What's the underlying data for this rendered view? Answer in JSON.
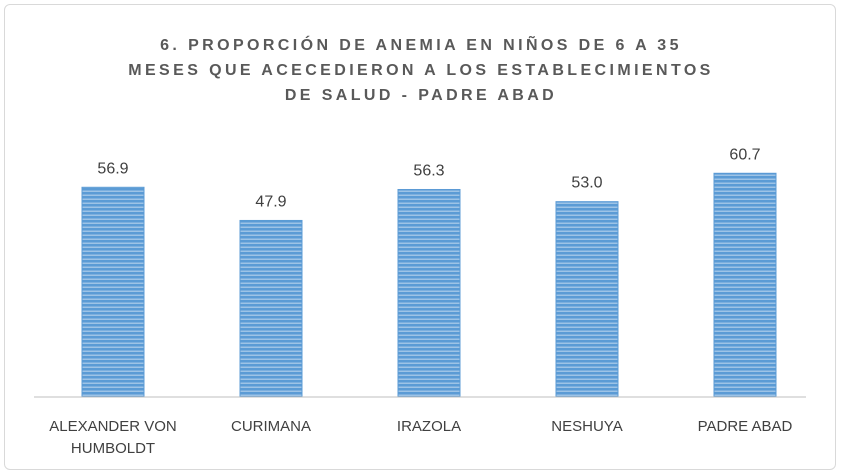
{
  "chart_data": {
    "type": "bar",
    "title": [
      "6. PROPORCIÓN DE ANEMIA EN NIÑOS DE 6 A 35",
      "MESES QUE ACECEDIERON A LOS ESTABLECIMIENTOS",
      "DE SALUD - PADRE ABAD"
    ],
    "categories": [
      "ALEXANDER VON HUMBOLDT",
      "CURIMANA",
      "IRAZOLA",
      "NESHUYA",
      "PADRE ABAD"
    ],
    "values": [
      56.9,
      47.9,
      56.3,
      53.0,
      60.7
    ],
    "value_labels": [
      "56.9",
      "47.9",
      "56.3",
      "53.0",
      "60.7"
    ],
    "color": "#5b9bd5",
    "ylim": [
      0,
      70
    ]
  }
}
